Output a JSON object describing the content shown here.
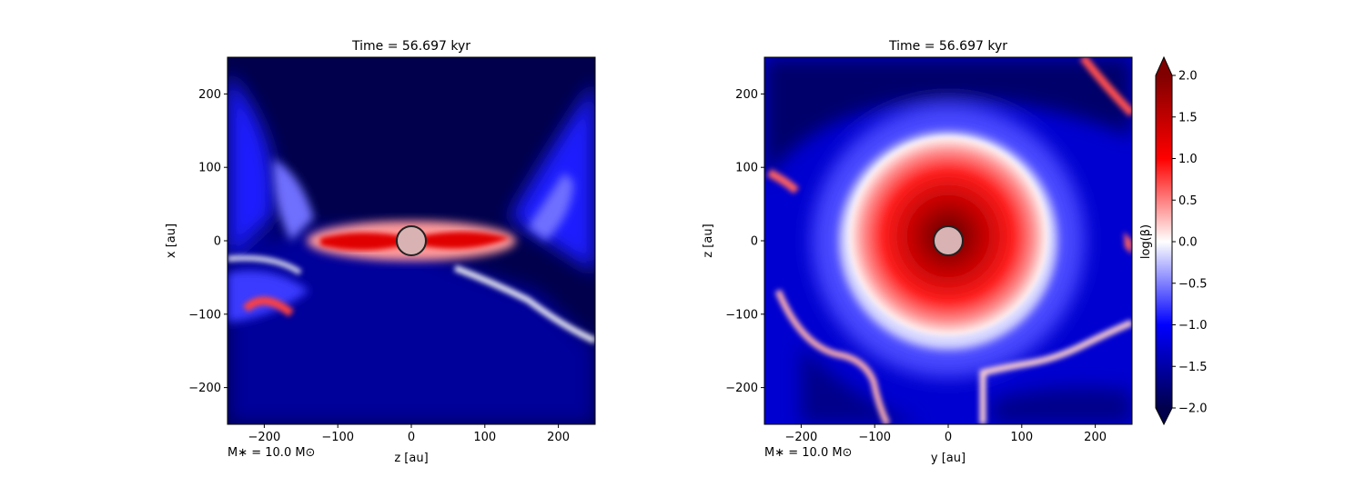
{
  "chart_data": [
    {
      "type": "heatmap",
      "title": "Time = 56.697 kyr",
      "xlabel": "z [au]",
      "ylabel": "x [au]",
      "xlim": [
        -250,
        250
      ],
      "ylim": [
        -250,
        250
      ],
      "xticks": [
        -200,
        -100,
        0,
        100,
        200
      ],
      "yticks": [
        -200,
        -100,
        0,
        100,
        200
      ],
      "xtick_labels": [
        "−200",
        "−100",
        "0",
        "100",
        "200"
      ],
      "ytick_labels": [
        "−200",
        "−100",
        "0",
        "100",
        "200"
      ],
      "annotation": "M∗ = 10.0 M⊙",
      "view": "edge-on",
      "sink_radius": 20
    },
    {
      "type": "heatmap",
      "title": "Time = 56.697 kyr",
      "xlabel": "y [au]",
      "ylabel": "z [au]",
      "xlim": [
        -250,
        250
      ],
      "ylim": [
        -250,
        250
      ],
      "xticks": [
        -200,
        -100,
        0,
        100,
        200
      ],
      "yticks": [
        -200,
        -100,
        0,
        100,
        200
      ],
      "xtick_labels": [
        "−200",
        "−100",
        "0",
        "100",
        "200"
      ],
      "ytick_labels": [
        "−200",
        "−100",
        "0",
        "100",
        "200"
      ],
      "annotation": "M∗ = 10.0 M⊙",
      "view": "face-on",
      "sink_radius": 20
    }
  ],
  "colorbar": {
    "label": "log(β)",
    "range": [
      -2.0,
      2.0
    ],
    "ticks": [
      -2.0,
      -1.5,
      -1.0,
      -0.5,
      0.0,
      0.5,
      1.0,
      1.5,
      2.0
    ],
    "tick_labels": [
      "−2.0",
      "−1.5",
      "−1.0",
      "−0.5",
      "0.0",
      "0.5",
      "1.0",
      "1.5",
      "2.0"
    ],
    "colormap": "seismic",
    "colors": [
      "#00004c",
      "#0000ff",
      "#ffffff",
      "#ff0000",
      "#800000"
    ]
  },
  "colors": {
    "sink_fill": "#d9b3b3",
    "sink_edge": "#222222"
  }
}
